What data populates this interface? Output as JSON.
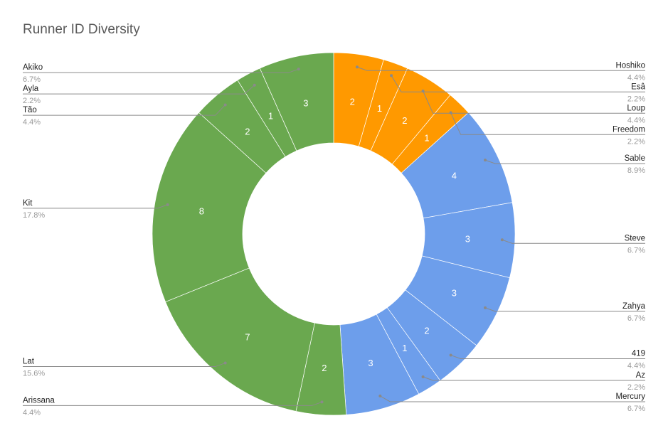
{
  "chart_data": {
    "type": "pie",
    "donut": true,
    "title": "Runner ID Diversity",
    "slices": [
      {
        "label": "Hoshiko",
        "value": 2,
        "percent": "4.4%",
        "color": "#ff9900"
      },
      {
        "label": "Esâ",
        "value": 1,
        "percent": "2.2%",
        "color": "#ff9900"
      },
      {
        "label": "Loup",
        "value": 2,
        "percent": "4.4%",
        "color": "#ff9900"
      },
      {
        "label": "Freedom",
        "value": 1,
        "percent": "2.2%",
        "color": "#ff9900"
      },
      {
        "label": "Sable",
        "value": 4,
        "percent": "8.9%",
        "color": "#6d9eeb"
      },
      {
        "label": "Steve",
        "value": 3,
        "percent": "6.7%",
        "color": "#6d9eeb"
      },
      {
        "label": "Zahya",
        "value": 3,
        "percent": "6.7%",
        "color": "#6d9eeb"
      },
      {
        "label": "419",
        "value": 2,
        "percent": "4.4%",
        "color": "#6d9eeb"
      },
      {
        "label": "Az",
        "value": 1,
        "percent": "2.2%",
        "color": "#6d9eeb"
      },
      {
        "label": "Mercury",
        "value": 3,
        "percent": "6.7%",
        "color": "#6d9eeb"
      },
      {
        "label": "Arissana",
        "value": 2,
        "percent": "4.4%",
        "color": "#6aa84f"
      },
      {
        "label": "Lat",
        "value": 7,
        "percent": "15.6%",
        "color": "#6aa84f"
      },
      {
        "label": "Kit",
        "value": 8,
        "percent": "17.8%",
        "color": "#6aa84f"
      },
      {
        "label": "Tão",
        "value": 2,
        "percent": "4.4%",
        "color": "#6aa84f"
      },
      {
        "label": "Ayla",
        "value": 1,
        "percent": "2.2%",
        "color": "#6aa84f"
      },
      {
        "label": "Akiko",
        "value": 3,
        "percent": "6.7%",
        "color": "#6aa84f"
      }
    ],
    "legend": "none",
    "label_placement": "outside-with-leader-lines"
  }
}
